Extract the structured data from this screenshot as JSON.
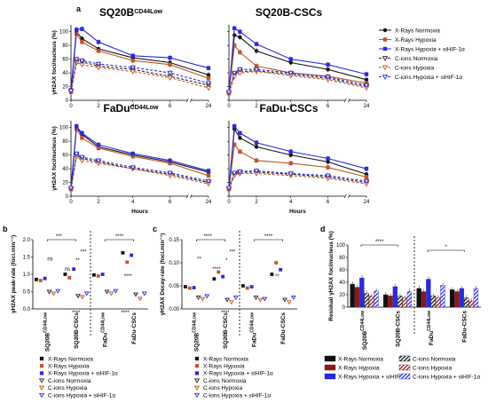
{
  "figure_labels": {
    "a": "a",
    "b": "b",
    "c": "c",
    "d": "d"
  },
  "colors": {
    "xray_norm": "#111111",
    "xray_hyp": "#c0562b",
    "xray_sihif": "#2b2bd6",
    "cion_norm": "#222222",
    "cion_hyp": "#c0562b",
    "cion_sihif": "#2b2bd6"
  },
  "legend_a": [
    {
      "label": "X-Rays Normoxia",
      "color": "#111111",
      "marker": "circle-filled",
      "dash": false
    },
    {
      "label": "X-Rays Hypoxia",
      "color": "#c0562b",
      "marker": "square-filled",
      "dash": false
    },
    {
      "label": "X-Rays Hypoxia + siHIF-1α",
      "color": "#2b2bd6",
      "marker": "square-filled",
      "dash": false
    },
    {
      "label": "C-ions Normoxia",
      "color": "#222222",
      "marker": "tri-down-open",
      "dash": true
    },
    {
      "label": "C-ions Hypoxia",
      "color": "#c0562b",
      "marker": "tri-down-open",
      "dash": true
    },
    {
      "label": "C-ions Hypoxia + siHIF-1α",
      "color": "#2b2bd6",
      "marker": "tri-down-open",
      "dash": true
    }
  ],
  "legend_bc": [
    {
      "label": "X-Rays Normoxia",
      "color": "#111111",
      "marker": "square-filled"
    },
    {
      "label": "X-Rays Hypoxia",
      "color": "#c0562b",
      "marker": "square-filled"
    },
    {
      "label": "X-Rays Hypoxia + siHIF-1α",
      "color": "#2b2bd6",
      "marker": "square-filled"
    },
    {
      "label": "C-ions Normoxia",
      "color": "#222222",
      "marker": "tri-down-open"
    },
    {
      "label": "C-ions Hypoxia",
      "color": "#c0562b",
      "marker": "tri-down-open"
    },
    {
      "label": "C-ions Hypoxia + siHIF-1α",
      "color": "#2b2bd6",
      "marker": "tri-down-open"
    }
  ],
  "legend_d": [
    {
      "label": "X-Rays Normoxia",
      "color": "#111111",
      "fill": "solid"
    },
    {
      "label": "C-ions Normoxia",
      "color": "#111111",
      "fill": "hatch"
    },
    {
      "label": "X-Rays Hypoxia",
      "color": "#8b1a1a",
      "fill": "solid"
    },
    {
      "label": "C-ions Hypoxia",
      "color": "#8b1a1a",
      "fill": "hatch"
    },
    {
      "label": "X-Rays Hypoxia + siHIF-1α",
      "color": "#2b2bd6",
      "fill": "solid"
    },
    {
      "label": "C-ions Hypoxia + siHIF-1α",
      "color": "#2b2bd6",
      "fill": "hatch"
    }
  ],
  "chart_data": [
    {
      "type": "line",
      "panel": "a1",
      "title": "SQ20B",
      "title_sup": "CD44Low",
      "xlabel": "",
      "ylabel": "γH2AX foci/nucleus (%)",
      "x": [
        0,
        0.5,
        1,
        2,
        4,
        6,
        24
      ],
      "xticks": [
        "0",
        "2",
        "4",
        "6",
        "24"
      ],
      "yticks": [
        "0",
        "20",
        "40",
        "60",
        "80",
        "100"
      ],
      "ylim": [
        0,
        110
      ],
      "series": [
        {
          "values": [
            12,
            100,
            90,
            75,
            62,
            55,
            37
          ],
          "style": "xray_norm"
        },
        {
          "values": [
            12,
            97,
            85,
            72,
            58,
            52,
            32
          ],
          "style": "xray_hyp"
        },
        {
          "values": [
            15,
            103,
            104,
            85,
            65,
            62,
            47
          ],
          "style": "xray_sihif"
        },
        {
          "values": [
            12,
            57,
            56,
            50,
            45,
            35,
            22
          ],
          "style": "cion_norm"
        },
        {
          "values": [
            12,
            55,
            52,
            48,
            42,
            33,
            18
          ],
          "style": "cion_hyp"
        },
        {
          "values": [
            14,
            60,
            58,
            53,
            48,
            40,
            25
          ],
          "style": "cion_sihif"
        }
      ]
    },
    {
      "type": "line",
      "panel": "a2",
      "title": "SQ20B-CSCs",
      "title_sup": "",
      "xlabel": "",
      "ylabel": "",
      "x": [
        0,
        0.5,
        1,
        2,
        4,
        6,
        24
      ],
      "xticks": [
        "0",
        "2",
        "4",
        "6",
        "24"
      ],
      "yticks": [],
      "ylim": [
        0,
        110
      ],
      "series": [
        {
          "values": [
            10,
            95,
            92,
            72,
            55,
            45,
            30
          ],
          "style": "xray_norm"
        },
        {
          "values": [
            10,
            80,
            70,
            50,
            40,
            35,
            25
          ],
          "style": "xray_hyp"
        },
        {
          "values": [
            12,
            105,
            100,
            82,
            60,
            52,
            38
          ],
          "style": "xray_sihif"
        },
        {
          "values": [
            10,
            38,
            42,
            43,
            38,
            32,
            20
          ],
          "style": "cion_norm"
        },
        {
          "values": [
            10,
            35,
            40,
            42,
            36,
            30,
            18
          ],
          "style": "cion_hyp"
        },
        {
          "values": [
            12,
            40,
            45,
            45,
            40,
            34,
            22
          ],
          "style": "cion_sihif"
        }
      ]
    },
    {
      "type": "line",
      "panel": "a3",
      "title": "FaDu",
      "title_sup": "CD44Low",
      "xlabel": "Hours",
      "ylabel": "γH2AX foci/nucleus (%)",
      "x": [
        0,
        0.5,
        1,
        2,
        4,
        6,
        24
      ],
      "xticks": [
        "0",
        "2",
        "4",
        "6",
        "24"
      ],
      "yticks": [
        "0",
        "20",
        "40",
        "60",
        "80",
        "100"
      ],
      "ylim": [
        0,
        110
      ],
      "series": [
        {
          "values": [
            10,
            100,
            90,
            72,
            60,
            50,
            35
          ],
          "style": "xray_norm"
        },
        {
          "values": [
            10,
            98,
            85,
            70,
            58,
            48,
            30
          ],
          "style": "xray_hyp"
        },
        {
          "values": [
            12,
            102,
            92,
            75,
            62,
            52,
            37
          ],
          "style": "xray_sihif"
        },
        {
          "values": [
            10,
            60,
            55,
            50,
            40,
            32,
            20
          ],
          "style": "cion_norm"
        },
        {
          "values": [
            10,
            58,
            52,
            48,
            40,
            30,
            18
          ],
          "style": "cion_hyp"
        },
        {
          "values": [
            12,
            62,
            57,
            52,
            42,
            34,
            22
          ],
          "style": "cion_sihif"
        }
      ]
    },
    {
      "type": "line",
      "panel": "a4",
      "title": "FaDu-CSCs",
      "title_sup": "",
      "xlabel": "Hours",
      "ylabel": "",
      "x": [
        0,
        0.5,
        1,
        2,
        4,
        6,
        24
      ],
      "xticks": [
        "0",
        "2",
        "4",
        "6",
        "24"
      ],
      "yticks": [],
      "ylim": [
        0,
        110
      ],
      "series": [
        {
          "values": [
            10,
            98,
            85,
            72,
            60,
            50,
            32
          ],
          "style": "xray_norm"
        },
        {
          "values": [
            10,
            75,
            65,
            52,
            48,
            42,
            28
          ],
          "style": "xray_hyp"
        },
        {
          "values": [
            12,
            102,
            92,
            78,
            65,
            55,
            40
          ],
          "style": "xray_sihif"
        },
        {
          "values": [
            10,
            32,
            35,
            35,
            32,
            28,
            20
          ],
          "style": "cion_norm"
        },
        {
          "values": [
            10,
            30,
            33,
            33,
            30,
            26,
            18
          ],
          "style": "cion_hyp"
        },
        {
          "values": [
            12,
            34,
            36,
            37,
            33,
            30,
            22
          ],
          "style": "cion_sihif"
        }
      ]
    },
    {
      "type": "scatter",
      "panel": "b",
      "ylabel": "γH2AX peak-rate (foci.min⁻¹)",
      "yticks": [
        "0.0",
        "0.5",
        "1.0",
        "1.5",
        "2.0"
      ],
      "ylim": [
        0,
        2.0
      ],
      "groups": [
        {
          "label": "SQ20B",
          "sup": "CD44Low",
          "values": [
            0.85,
            0.82,
            0.88,
            0.5,
            0.45,
            0.52
          ]
        },
        {
          "label": "SQ20B-CSCs",
          "sup": "",
          "values": [
            1.0,
            0.9,
            1.15,
            0.38,
            0.35,
            0.45
          ]
        },
        {
          "label": "FaDu",
          "sup": "CD44Low",
          "values": [
            0.98,
            0.95,
            1.0,
            0.5,
            0.45,
            0.52
          ]
        },
        {
          "label": "FaDu-CSCs",
          "sup": "",
          "values": [
            1.62,
            1.35,
            1.55,
            0.42,
            0.3,
            0.45
          ]
        }
      ],
      "annotations": [
        "***",
        "**",
        "***",
        "****",
        "ns",
        "ns",
        "****",
        "****",
        "****"
      ]
    },
    {
      "type": "scatter",
      "panel": "c",
      "ylabel": "γH2AX Decay-rate (foci.min⁻¹)",
      "yticks": [
        "0.00",
        "0.05",
        "0.10",
        "0.15"
      ],
      "ylim": [
        0,
        0.15
      ],
      "groups": [
        {
          "label": "SQ20B",
          "sup": "CD44Low",
          "values": [
            0.048,
            0.045,
            0.046,
            0.025,
            0.022,
            0.028
          ]
        },
        {
          "label": "SQ20B-CSCs",
          "sup": "",
          "values": [
            0.065,
            0.08,
            0.07,
            0.02,
            0.015,
            0.025
          ]
        },
        {
          "label": "FaDu",
          "sup": "CD44Low",
          "values": [
            0.05,
            0.045,
            0.048,
            0.025,
            0.02,
            0.022
          ]
        },
        {
          "label": "FaDu-CSCs",
          "sup": "",
          "values": [
            0.075,
            0.1,
            0.085,
            0.02,
            0.015,
            0.025
          ]
        }
      ],
      "annotations": [
        "****",
        "*",
        "***",
        "****",
        "**",
        "****",
        "**",
        "****"
      ]
    },
    {
      "type": "bar",
      "panel": "d",
      "ylabel": "Residual γH2AX foci/nucleus (%)",
      "yticks": [
        "0",
        "20",
        "40",
        "60",
        "80",
        "100"
      ],
      "ylim": [
        0,
        100
      ],
      "groups": [
        {
          "label": "SQ20B",
          "sup": "CD44Low",
          "values": [
            37,
            32,
            47,
            22,
            18,
            26
          ]
        },
        {
          "label": "SQ20B-CSCs",
          "sup": "",
          "values": [
            20,
            18,
            33,
            18,
            15,
            25
          ]
        },
        {
          "label": "FaDu",
          "sup": "CD44Low",
          "values": [
            30,
            25,
            45,
            18,
            15,
            35
          ]
        },
        {
          "label": "FaDu-CSCs",
          "sup": "",
          "values": [
            28,
            25,
            30,
            15,
            10,
            30
          ]
        }
      ],
      "annotations": [
        "****",
        "*"
      ]
    }
  ]
}
